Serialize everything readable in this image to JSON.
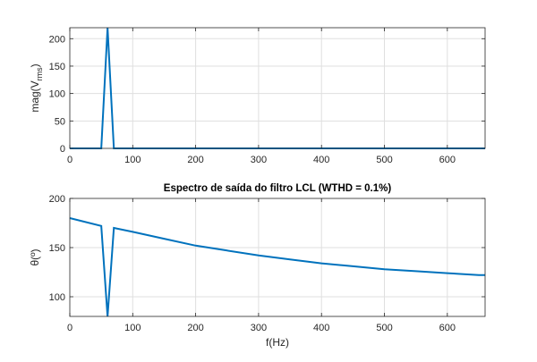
{
  "chart_data": [
    {
      "type": "line",
      "title": "",
      "xlabel": "",
      "ylabel": "mag(V",
      "ylabel_subscript": "rms",
      "ylabel_suffix": ")",
      "xlim": [
        0,
        660
      ],
      "ylim": [
        0,
        220
      ],
      "xticks": [
        0,
        100,
        200,
        300,
        400,
        500,
        600
      ],
      "xtick_labels": [
        "0",
        "100",
        "200",
        "300",
        "400",
        "500",
        "600"
      ],
      "yticks": [
        0,
        50,
        100,
        150,
        200
      ],
      "ytick_labels": [
        "0",
        "50",
        "100",
        "150",
        "200"
      ],
      "grid": true,
      "line_color": "#0072bd",
      "series": [
        {
          "x": [
            0,
            10,
            20,
            30,
            40,
            50,
            60,
            70,
            80,
            90,
            100,
            150,
            200,
            250,
            300,
            350,
            400,
            450,
            500,
            550,
            600,
            660
          ],
          "y": [
            0,
            0,
            0,
            0,
            0,
            0,
            220,
            0,
            0,
            0,
            0,
            0,
            0,
            0,
            0,
            0,
            0,
            0,
            0,
            0,
            0,
            0
          ]
        }
      ]
    },
    {
      "type": "line",
      "title": "Espectro de saída do filtro LCL (WTHD = 0.1%)",
      "xlabel": "f(Hz)",
      "ylabel": "θ(º)",
      "xlim": [
        0,
        660
      ],
      "ylim": [
        80,
        200
      ],
      "xticks": [
        0,
        100,
        200,
        300,
        400,
        500,
        600
      ],
      "xtick_labels": [
        "0",
        "100",
        "200",
        "300",
        "400",
        "500",
        "600"
      ],
      "yticks": [
        100,
        150,
        200
      ],
      "ytick_labels": [
        "100",
        "150",
        "200"
      ],
      "grid": true,
      "line_color": "#0072bd",
      "series": [
        {
          "x": [
            0,
            50,
            60,
            70,
            100,
            150,
            200,
            250,
            300,
            350,
            400,
            450,
            500,
            550,
            600,
            650,
            660
          ],
          "y": [
            180,
            172,
            80,
            170,
            166,
            159,
            152,
            147,
            142,
            138,
            134,
            131,
            128,
            126,
            124,
            122,
            122
          ]
        }
      ]
    }
  ]
}
